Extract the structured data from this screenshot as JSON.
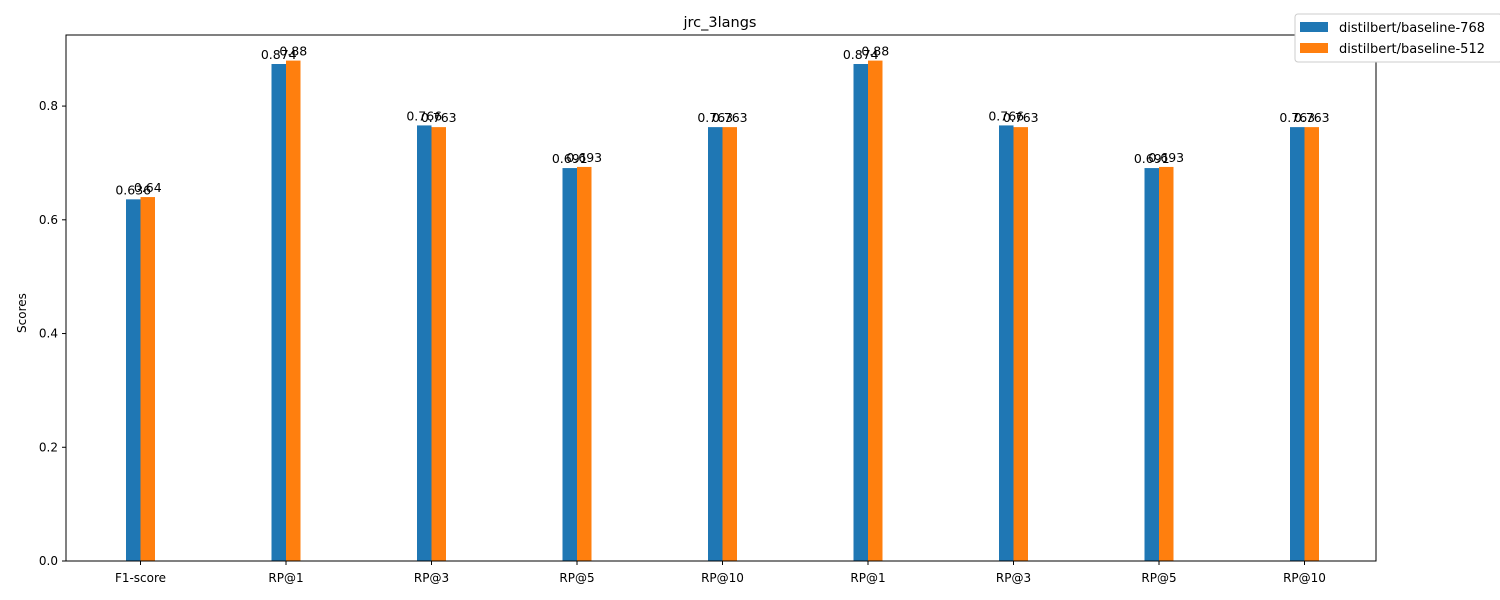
{
  "chart_data": {
    "type": "bar",
    "title": "jrc_3langs",
    "xlabel": "",
    "ylabel": "Scores",
    "ylim": [
      0,
      0.925
    ],
    "yticks": [
      0.0,
      0.2,
      0.4,
      0.6,
      0.8
    ],
    "ytick_labels": [
      "0.0",
      "0.2",
      "0.4",
      "0.6",
      "0.8"
    ],
    "grid": false,
    "legend_position": "top-right",
    "categories": [
      "F1-score",
      "RP@1",
      "RP@3",
      "RP@5",
      "RP@10",
      "RP@1",
      "RP@3",
      "RP@5",
      "RP@10"
    ],
    "series": [
      {
        "name": "distilbert/baseline-768",
        "color": "#1f77b4",
        "values": [
          0.636,
          0.874,
          0.766,
          0.691,
          0.763,
          0.874,
          0.766,
          0.691,
          0.763
        ],
        "labels": [
          "0.636",
          "0.874",
          "0.766",
          "0.691",
          "0.763",
          "0.874",
          "0.766",
          "0.691",
          "0.763"
        ]
      },
      {
        "name": "distilbert/baseline-512",
        "color": "#ff7f0e",
        "values": [
          0.64,
          0.88,
          0.763,
          0.693,
          0.763,
          0.88,
          0.763,
          0.693,
          0.763
        ],
        "labels": [
          "0.64",
          "0.88",
          "0.763",
          "0.693",
          "0.763",
          "0.88",
          "0.763",
          "0.693",
          "0.763"
        ]
      }
    ]
  }
}
